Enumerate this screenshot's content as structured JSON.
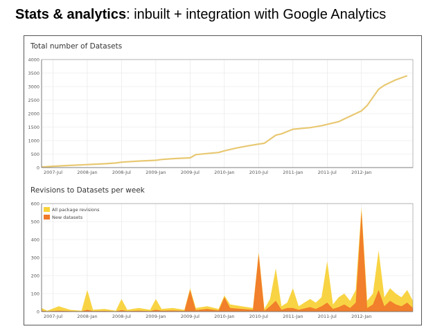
{
  "slide": {
    "title_bold": "Stats & analytics",
    "title_rest": ": inbuilt + integration with Google Analytics"
  },
  "colors": {
    "line": "#e8c872",
    "all_revisions": "#f8d23a",
    "new_datasets": "#f07a2a",
    "grid": "#e4e4e4",
    "axis": "#444444"
  },
  "chart_data": [
    {
      "type": "line",
      "title": "Total number of Datasets",
      "xlabel": "",
      "ylabel": "",
      "ylim": [
        0,
        4000
      ],
      "yticks": [
        "0",
        "500",
        "1000",
        "1500",
        "2000",
        "2500",
        "3000",
        "3500",
        "4000"
      ],
      "xticks": [
        "2007-Jul",
        "2008-Jan",
        "2008-Jul",
        "2009-Jan",
        "2009-Jul",
        "2010-Jan",
        "2010-Jul",
        "2011-Jan",
        "2011-Jul",
        "2012-Jan"
      ],
      "xrange": [
        "2007-05",
        "2012-10"
      ],
      "grid": true,
      "series": [
        {
          "x": [
            "2007-05",
            "2007-07",
            "2007-10",
            "2008-01",
            "2008-04",
            "2008-06",
            "2008-07",
            "2008-10",
            "2009-01",
            "2009-02",
            "2009-04",
            "2009-07",
            "2009-08",
            "2009-10",
            "2009-12",
            "2010-01",
            "2010-03",
            "2010-05",
            "2010-07",
            "2010-08",
            "2010-10",
            "2010-11",
            "2011-01",
            "2011-04",
            "2011-06",
            "2011-07",
            "2011-09",
            "2011-10",
            "2011-12",
            "2012-01",
            "2012-02",
            "2012-04",
            "2012-05",
            "2012-07",
            "2012-09"
          ],
          "values": [
            20,
            50,
            80,
            110,
            140,
            170,
            200,
            240,
            270,
            300,
            330,
            360,
            480,
            520,
            560,
            620,
            720,
            800,
            870,
            900,
            1200,
            1250,
            1420,
            1480,
            1550,
            1600,
            1700,
            1800,
            2000,
            2100,
            2300,
            2900,
            3050,
            3250,
            3400
          ]
        }
      ]
    },
    {
      "type": "area",
      "title": "Revisions to Datasets per week",
      "xlabel": "",
      "ylabel": "",
      "ylim": [
        0,
        600
      ],
      "yticks": [
        "0",
        "100",
        "200",
        "300",
        "400",
        "500",
        "600"
      ],
      "xticks": [
        "2007-Jul",
        "2008-Jan",
        "2008-Jul",
        "2009-Jan",
        "2009-Jul",
        "2010-Jan",
        "2010-Jul",
        "2011-Jan",
        "2011-Jul",
        "2012-Jan"
      ],
      "xrange": [
        "2007-05",
        "2012-10"
      ],
      "grid": true,
      "legend_position": "top-left",
      "series": [
        {
          "name": "All package revisions",
          "x": [
            "2007-05",
            "2007-06",
            "2007-08",
            "2007-10",
            "2007-12",
            "2008-01",
            "2008-02",
            "2008-04",
            "2008-06",
            "2008-07",
            "2008-08",
            "2008-10",
            "2008-12",
            "2009-01",
            "2009-02",
            "2009-04",
            "2009-06",
            "2009-07",
            "2009-08",
            "2009-10",
            "2009-12",
            "2010-01",
            "2010-02",
            "2010-04",
            "2010-06",
            "2010-07",
            "2010-08",
            "2010-09",
            "2010-10",
            "2010-11",
            "2010-12",
            "2011-01",
            "2011-02",
            "2011-04",
            "2011-05",
            "2011-06",
            "2011-07",
            "2011-08",
            "2011-09",
            "2011-10",
            "2011-11",
            "2011-12",
            "2012-01",
            "2012-02",
            "2012-03",
            "2012-04",
            "2012-05",
            "2012-06",
            "2012-07",
            "2012-08",
            "2012-09",
            "2012-10"
          ],
          "values": [
            20,
            5,
            30,
            10,
            5,
            120,
            10,
            15,
            5,
            70,
            10,
            20,
            10,
            70,
            15,
            20,
            10,
            130,
            20,
            30,
            15,
            90,
            40,
            30,
            20,
            330,
            15,
            70,
            240,
            30,
            50,
            130,
            30,
            70,
            50,
            80,
            280,
            40,
            80,
            100,
            60,
            120,
            580,
            60,
            100,
            340,
            80,
            130,
            100,
            80,
            120,
            60
          ]
        },
        {
          "name": "New datasets",
          "x": [
            "2007-05",
            "2007-06",
            "2007-08",
            "2007-10",
            "2007-12",
            "2008-01",
            "2008-02",
            "2008-04",
            "2008-06",
            "2008-07",
            "2008-08",
            "2008-10",
            "2008-12",
            "2009-01",
            "2009-02",
            "2009-04",
            "2009-06",
            "2009-07",
            "2009-08",
            "2009-10",
            "2009-12",
            "2010-01",
            "2010-02",
            "2010-04",
            "2010-06",
            "2010-07",
            "2010-08",
            "2010-09",
            "2010-10",
            "2010-11",
            "2010-12",
            "2011-01",
            "2011-02",
            "2011-04",
            "2011-05",
            "2011-06",
            "2011-07",
            "2011-08",
            "2011-09",
            "2011-10",
            "2011-11",
            "2011-12",
            "2012-01",
            "2012-02",
            "2012-03",
            "2012-04",
            "2012-05",
            "2012-06",
            "2012-07",
            "2012-08",
            "2012-09",
            "2012-10"
          ],
          "values": [
            5,
            2,
            5,
            3,
            2,
            10,
            3,
            4,
            2,
            8,
            3,
            5,
            3,
            10,
            5,
            6,
            4,
            120,
            8,
            15,
            6,
            80,
            20,
            15,
            10,
            320,
            5,
            30,
            60,
            10,
            20,
            20,
            10,
            25,
            15,
            30,
            50,
            15,
            25,
            40,
            20,
            50,
            560,
            20,
            40,
            120,
            30,
            60,
            40,
            30,
            50,
            20
          ]
        }
      ]
    }
  ]
}
